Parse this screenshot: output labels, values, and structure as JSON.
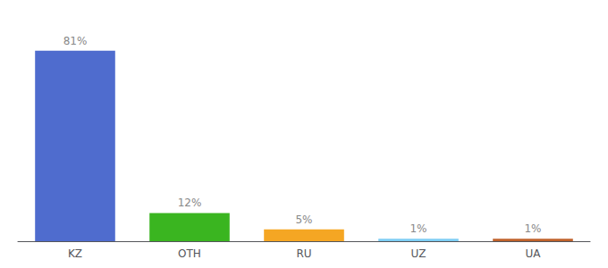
{
  "chart_data": {
    "type": "bar",
    "categories": [
      "KZ",
      "OTH",
      "RU",
      "UZ",
      "UA"
    ],
    "values": [
      81,
      12,
      5,
      1,
      1
    ],
    "value_labels": [
      "81%",
      "12%",
      "5%",
      "1%",
      "1%"
    ],
    "colors": [
      "#4f6cce",
      "#3ab520",
      "#f5a623",
      "#7ecef4",
      "#c0622b"
    ],
    "ylim": [
      0,
      95
    ],
    "data_labels": true,
    "tick_labels": "x",
    "grid": false
  }
}
